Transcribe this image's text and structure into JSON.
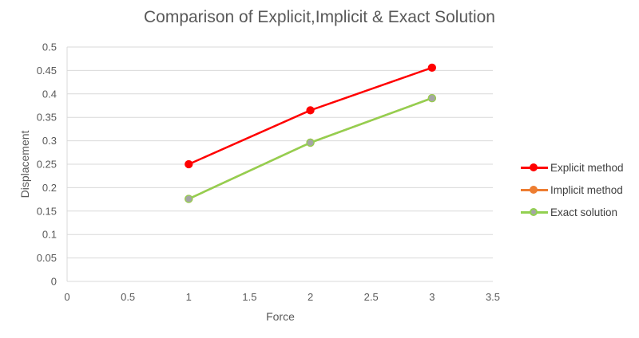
{
  "chart_data": {
    "type": "scatter",
    "title": "Comparison of Explicit,Implicit & Exact Solution",
    "xlabel": "Force",
    "ylabel": "Displacement",
    "xlim": [
      0,
      3.5
    ],
    "ylim": [
      0,
      0.5
    ],
    "xticks": [
      "0",
      "0.5",
      "1",
      "1.5",
      "2",
      "2.5",
      "3",
      "3.5"
    ],
    "yticks": [
      "0",
      "0.05",
      "0.1",
      "0.15",
      "0.2",
      "0.25",
      "0.3",
      "0.35",
      "0.4",
      "0.45",
      "0.5"
    ],
    "grid": "horizontal",
    "legend_position": "right",
    "x": [
      1,
      2,
      3
    ],
    "series": [
      {
        "name": "Explicit method",
        "values": [
          0.25,
          0.365,
          0.456
        ],
        "color": "#FF0000",
        "marker_color": "#FF0000"
      },
      {
        "name": "Implicit method",
        "values": [
          0.176,
          0.296,
          0.391
        ],
        "color": "#ED7D31",
        "marker_color": "#ED7D31"
      },
      {
        "name": "Exact solution",
        "values": [
          0.176,
          0.296,
          0.391
        ],
        "color": "#92D050",
        "marker_color": "#A5A5A5"
      }
    ]
  },
  "legend": {
    "items": [
      {
        "label": "Explicit method"
      },
      {
        "label": "Implicit method"
      },
      {
        "label": "Exact solution"
      }
    ]
  }
}
